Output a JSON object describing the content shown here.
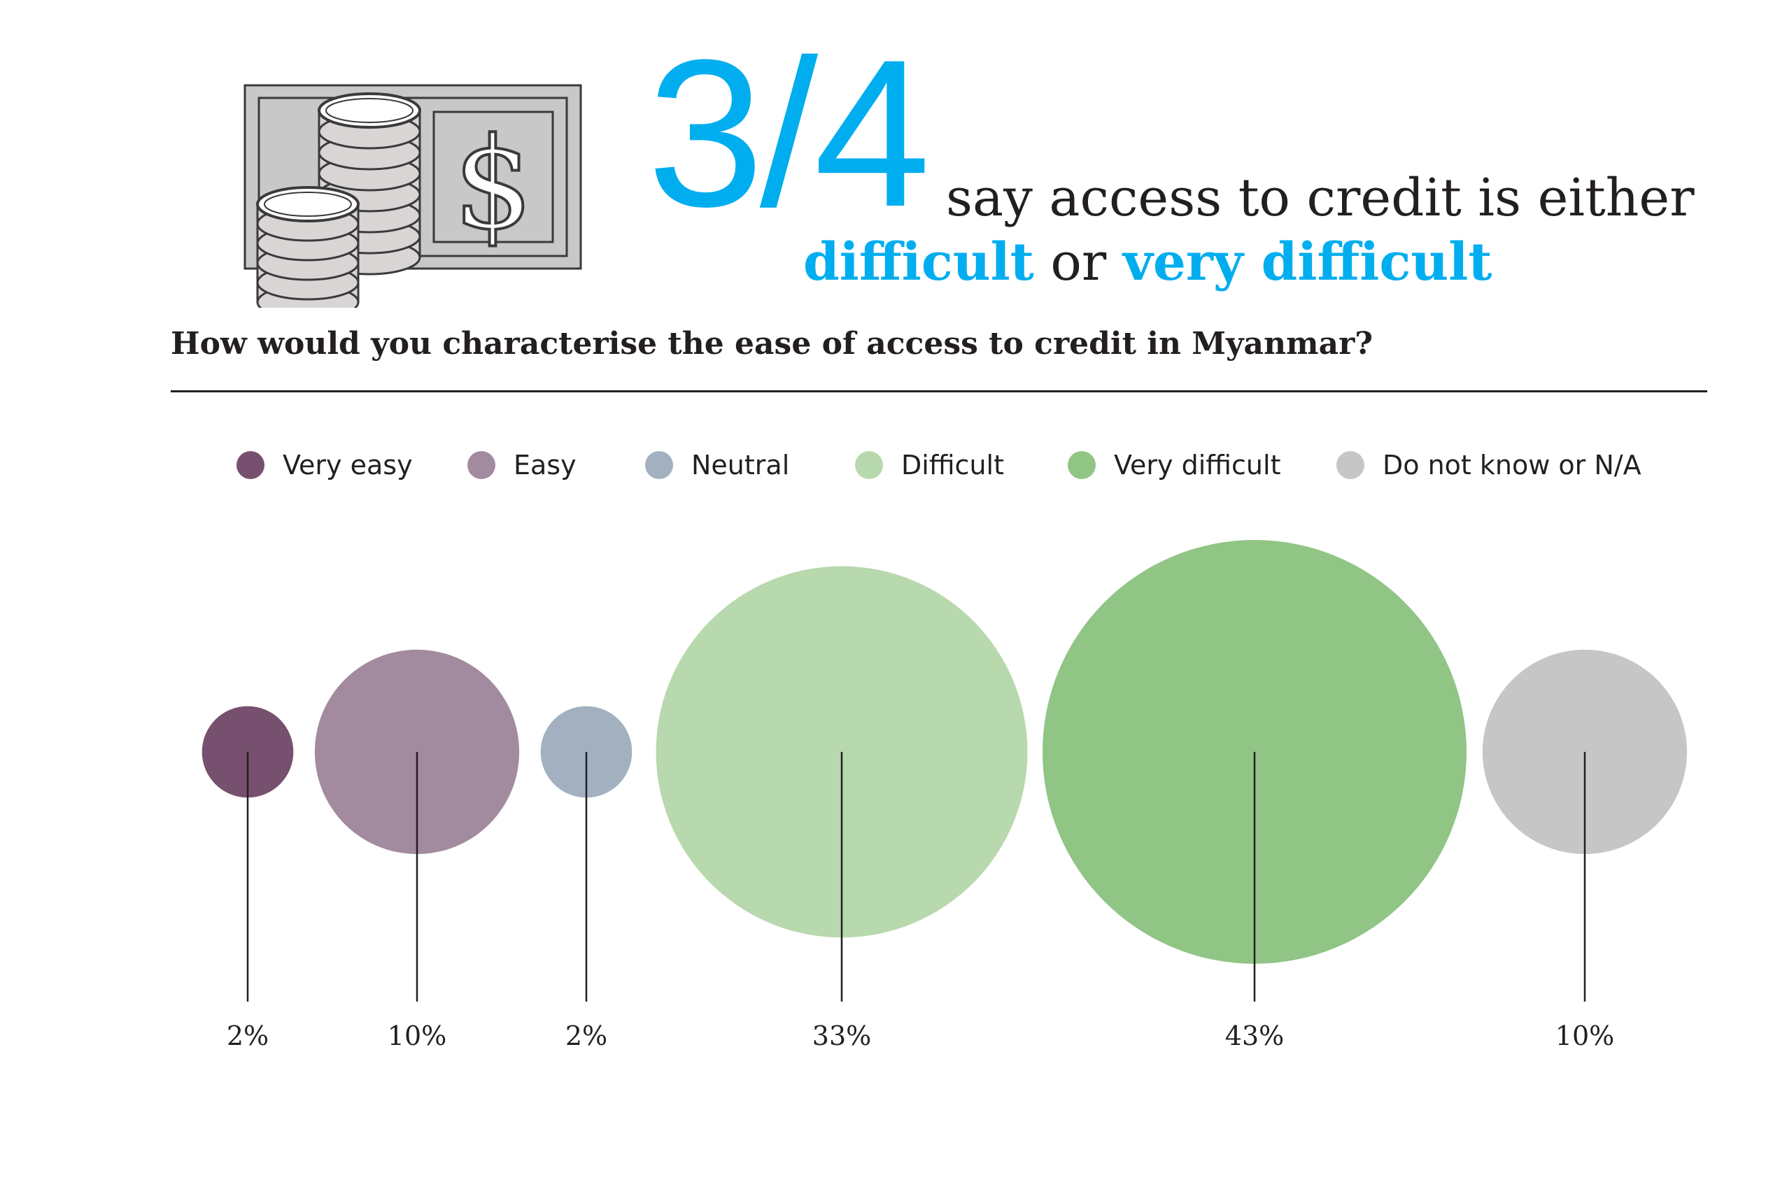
{
  "headline": {
    "fraction": "3/4",
    "line1": "say access to credit is either",
    "line2_accent1": "difficult",
    "line2_mid": " or ",
    "line2_accent2": "very difficult"
  },
  "question": "How would you characterise the ease of access to credit in Myanmar?",
  "illustration": {
    "icon": "money-coins-icon",
    "symbol": "$"
  },
  "colors": {
    "accent": "#00aeef",
    "text": "#231f20",
    "very_easy": "#77506f",
    "easy": "#a28a9f",
    "neutral": "#a3b0c0",
    "difficult": "#b8d8ad",
    "very_difficult": "#90c585",
    "na": "#c7c6c6"
  },
  "chart_data": {
    "type": "bubble",
    "title": "How would you characterise the ease of access to credit in Myanmar?",
    "unit": "%",
    "legend_position": "top",
    "categories": [
      "Very easy",
      "Easy",
      "Neutral",
      "Difficult",
      "Very difficult",
      "Do not know or N/A"
    ],
    "values": [
      2,
      10,
      2,
      33,
      43,
      10
    ],
    "labels": [
      "2%",
      "10%",
      "2%",
      "33%",
      "43%",
      "10%"
    ],
    "colors": [
      "#77506f",
      "#a28a9f",
      "#a3b0c0",
      "#b8d8ad",
      "#90c585",
      "#c7c6c6"
    ]
  }
}
